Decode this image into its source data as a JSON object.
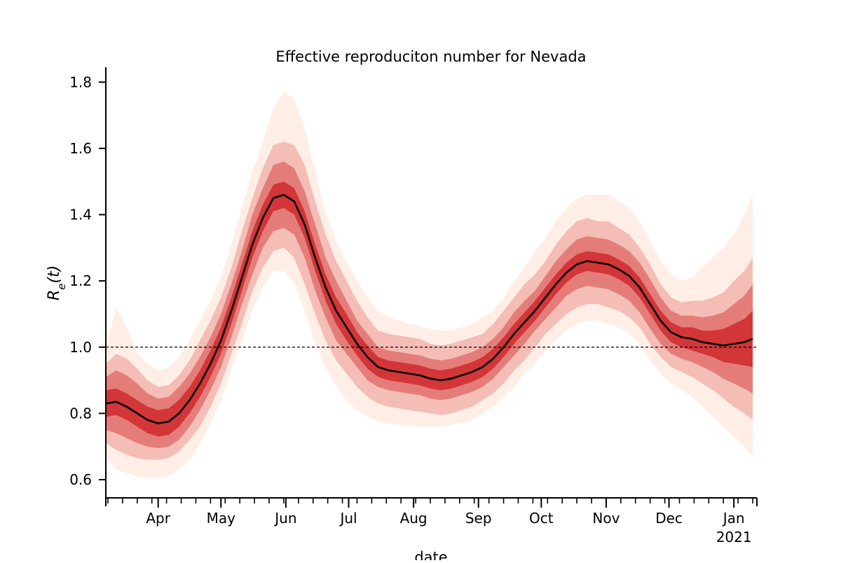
{
  "chart_data": {
    "type": "area",
    "title": "Effective reproduciton number for Nevada",
    "xlabel": "date",
    "ylabel": "R_e(t)",
    "ylim": [
      0.545,
      1.845
    ],
    "xlim": [
      "2020-03-07",
      "2021-01-12"
    ],
    "yticks": [
      0.6,
      0.8,
      1.0,
      1.2,
      1.4,
      1.6,
      1.8
    ],
    "ytick_labels": [
      "0.6",
      "0.8",
      "1.0",
      "1.2",
      "1.4",
      "1.6",
      "1.8"
    ],
    "xticks": [
      "2020-04-01",
      "2020-05-01",
      "2020-06-01",
      "2020-07-01",
      "2020-08-01",
      "2020-09-01",
      "2020-10-01",
      "2020-11-01",
      "2020-12-01",
      "2021-01-01"
    ],
    "xtick_labels": [
      "Apr",
      "May",
      "Jun",
      "Jul",
      "Aug",
      "Sep",
      "Oct",
      "Nov",
      "Dec",
      "Jan"
    ],
    "xtick_year_label": "2021",
    "reference_line": {
      "y": 1.0,
      "style": "dashed",
      "color": "#000000"
    },
    "band_color_outer": "#fde0d2",
    "band_color_inner": "#cb181d",
    "line_color": "#000000",
    "median": {
      "x": [
        "2020-03-07",
        "2020-03-12",
        "2020-03-17",
        "2020-03-22",
        "2020-03-27",
        "2020-04-01",
        "2020-04-06",
        "2020-04-11",
        "2020-04-16",
        "2020-04-21",
        "2020-04-26",
        "2020-05-01",
        "2020-05-06",
        "2020-05-11",
        "2020-05-16",
        "2020-05-21",
        "2020-05-26",
        "2020-05-31",
        "2020-06-05",
        "2020-06-10",
        "2020-06-15",
        "2020-06-20",
        "2020-06-25",
        "2020-06-30",
        "2020-07-05",
        "2020-07-10",
        "2020-07-15",
        "2020-07-20",
        "2020-07-25",
        "2020-07-30",
        "2020-08-04",
        "2020-08-09",
        "2020-08-14",
        "2020-08-19",
        "2020-08-24",
        "2020-08-29",
        "2020-09-03",
        "2020-09-08",
        "2020-09-13",
        "2020-09-18",
        "2020-09-23",
        "2020-09-28",
        "2020-10-03",
        "2020-10-08",
        "2020-10-13",
        "2020-10-18",
        "2020-10-23",
        "2020-10-28",
        "2020-11-02",
        "2020-11-07",
        "2020-11-12",
        "2020-11-17",
        "2020-11-22",
        "2020-11-27",
        "2020-12-02",
        "2020-12-07",
        "2020-12-12",
        "2020-12-17",
        "2020-12-22",
        "2020-12-27",
        "2021-01-01",
        "2021-01-06",
        "2021-01-10"
      ],
      "y": [
        0.83,
        0.835,
        0.82,
        0.8,
        0.78,
        0.77,
        0.775,
        0.8,
        0.84,
        0.89,
        0.95,
        1.02,
        1.11,
        1.21,
        1.31,
        1.39,
        1.45,
        1.46,
        1.44,
        1.37,
        1.27,
        1.18,
        1.11,
        1.06,
        1.01,
        0.97,
        0.94,
        0.93,
        0.925,
        0.92,
        0.915,
        0.905,
        0.9,
        0.905,
        0.915,
        0.925,
        0.94,
        0.965,
        1.0,
        1.04,
        1.075,
        1.11,
        1.15,
        1.19,
        1.225,
        1.25,
        1.26,
        1.255,
        1.25,
        1.235,
        1.215,
        1.18,
        1.13,
        1.08,
        1.045,
        1.03,
        1.025,
        1.015,
        1.01,
        1.005,
        1.01,
        1.015,
        1.025
      ]
    },
    "intervals": [
      {
        "lower": [
          0.67,
          0.63,
          0.62,
          0.61,
          0.605,
          0.605,
          0.61,
          0.63,
          0.66,
          0.71,
          0.77,
          0.84,
          0.93,
          1.02,
          1.11,
          1.18,
          1.23,
          1.23,
          1.19,
          1.11,
          1.01,
          0.94,
          0.88,
          0.84,
          0.81,
          0.79,
          0.775,
          0.77,
          0.765,
          0.765,
          0.76,
          0.76,
          0.76,
          0.765,
          0.77,
          0.78,
          0.8,
          0.82,
          0.85,
          0.88,
          0.92,
          0.95,
          0.99,
          1.02,
          1.05,
          1.07,
          1.08,
          1.08,
          1.07,
          1.06,
          1.04,
          1.01,
          0.96,
          0.92,
          0.89,
          0.87,
          0.85,
          0.82,
          0.79,
          0.76,
          0.73,
          0.7,
          0.67
        ],
        "upper": [
          1.0,
          1.12,
          1.06,
          0.98,
          0.95,
          0.93,
          0.94,
          0.97,
          1.02,
          1.08,
          1.14,
          1.21,
          1.31,
          1.42,
          1.53,
          1.62,
          1.72,
          1.77,
          1.75,
          1.66,
          1.53,
          1.41,
          1.32,
          1.26,
          1.2,
          1.15,
          1.11,
          1.09,
          1.08,
          1.07,
          1.065,
          1.055,
          1.05,
          1.05,
          1.06,
          1.07,
          1.09,
          1.11,
          1.15,
          1.2,
          1.24,
          1.29,
          1.33,
          1.38,
          1.42,
          1.45,
          1.46,
          1.46,
          1.46,
          1.44,
          1.42,
          1.38,
          1.32,
          1.26,
          1.22,
          1.2,
          1.21,
          1.24,
          1.27,
          1.3,
          1.34,
          1.4,
          1.46
        ]
      },
      {
        "lower": [
          0.71,
          0.69,
          0.675,
          0.665,
          0.66,
          0.66,
          0.665,
          0.685,
          0.72,
          0.76,
          0.82,
          0.89,
          0.98,
          1.07,
          1.17,
          1.24,
          1.29,
          1.3,
          1.27,
          1.19,
          1.1,
          1.02,
          0.96,
          0.92,
          0.88,
          0.85,
          0.83,
          0.82,
          0.815,
          0.81,
          0.805,
          0.8,
          0.795,
          0.8,
          0.81,
          0.82,
          0.84,
          0.86,
          0.89,
          0.93,
          0.96,
          1.0,
          1.04,
          1.07,
          1.1,
          1.12,
          1.13,
          1.13,
          1.12,
          1.11,
          1.09,
          1.06,
          1.01,
          0.97,
          0.94,
          0.925,
          0.91,
          0.89,
          0.87,
          0.845,
          0.82,
          0.8,
          0.78
        ]
      },
      {
        "lower": [
          0.75,
          0.74,
          0.725,
          0.71,
          0.7,
          0.695,
          0.7,
          0.72,
          0.76,
          0.81,
          0.87,
          0.94,
          1.03,
          1.13,
          1.22,
          1.3,
          1.35,
          1.36,
          1.34,
          1.27,
          1.17,
          1.09,
          1.02,
          0.98,
          0.94,
          0.9,
          0.88,
          0.87,
          0.865,
          0.86,
          0.855,
          0.845,
          0.84,
          0.845,
          0.855,
          0.865,
          0.88,
          0.905,
          0.94,
          0.975,
          1.01,
          1.05,
          1.085,
          1.12,
          1.155,
          1.175,
          1.185,
          1.18,
          1.175,
          1.16,
          1.14,
          1.105,
          1.055,
          1.01,
          0.98,
          0.965,
          0.955,
          0.94,
          0.925,
          0.905,
          0.89,
          0.875,
          0.86
        ]
      },
      {
        "lower": [
          0.79,
          0.795,
          0.78,
          0.76,
          0.74,
          0.73,
          0.735,
          0.76,
          0.8,
          0.85,
          0.91,
          0.98,
          1.07,
          1.17,
          1.27,
          1.35,
          1.41,
          1.42,
          1.4,
          1.33,
          1.23,
          1.14,
          1.07,
          1.02,
          0.975,
          0.935,
          0.91,
          0.9,
          0.895,
          0.89,
          0.885,
          0.875,
          0.87,
          0.875,
          0.885,
          0.895,
          0.91,
          0.935,
          0.97,
          1.01,
          1.045,
          1.08,
          1.12,
          1.16,
          1.195,
          1.22,
          1.23,
          1.225,
          1.22,
          1.205,
          1.185,
          1.15,
          1.1,
          1.05,
          1.015,
          1.0,
          0.99,
          0.98,
          0.97,
          0.955,
          0.95,
          0.945,
          0.94
        ]
      }
    ]
  }
}
